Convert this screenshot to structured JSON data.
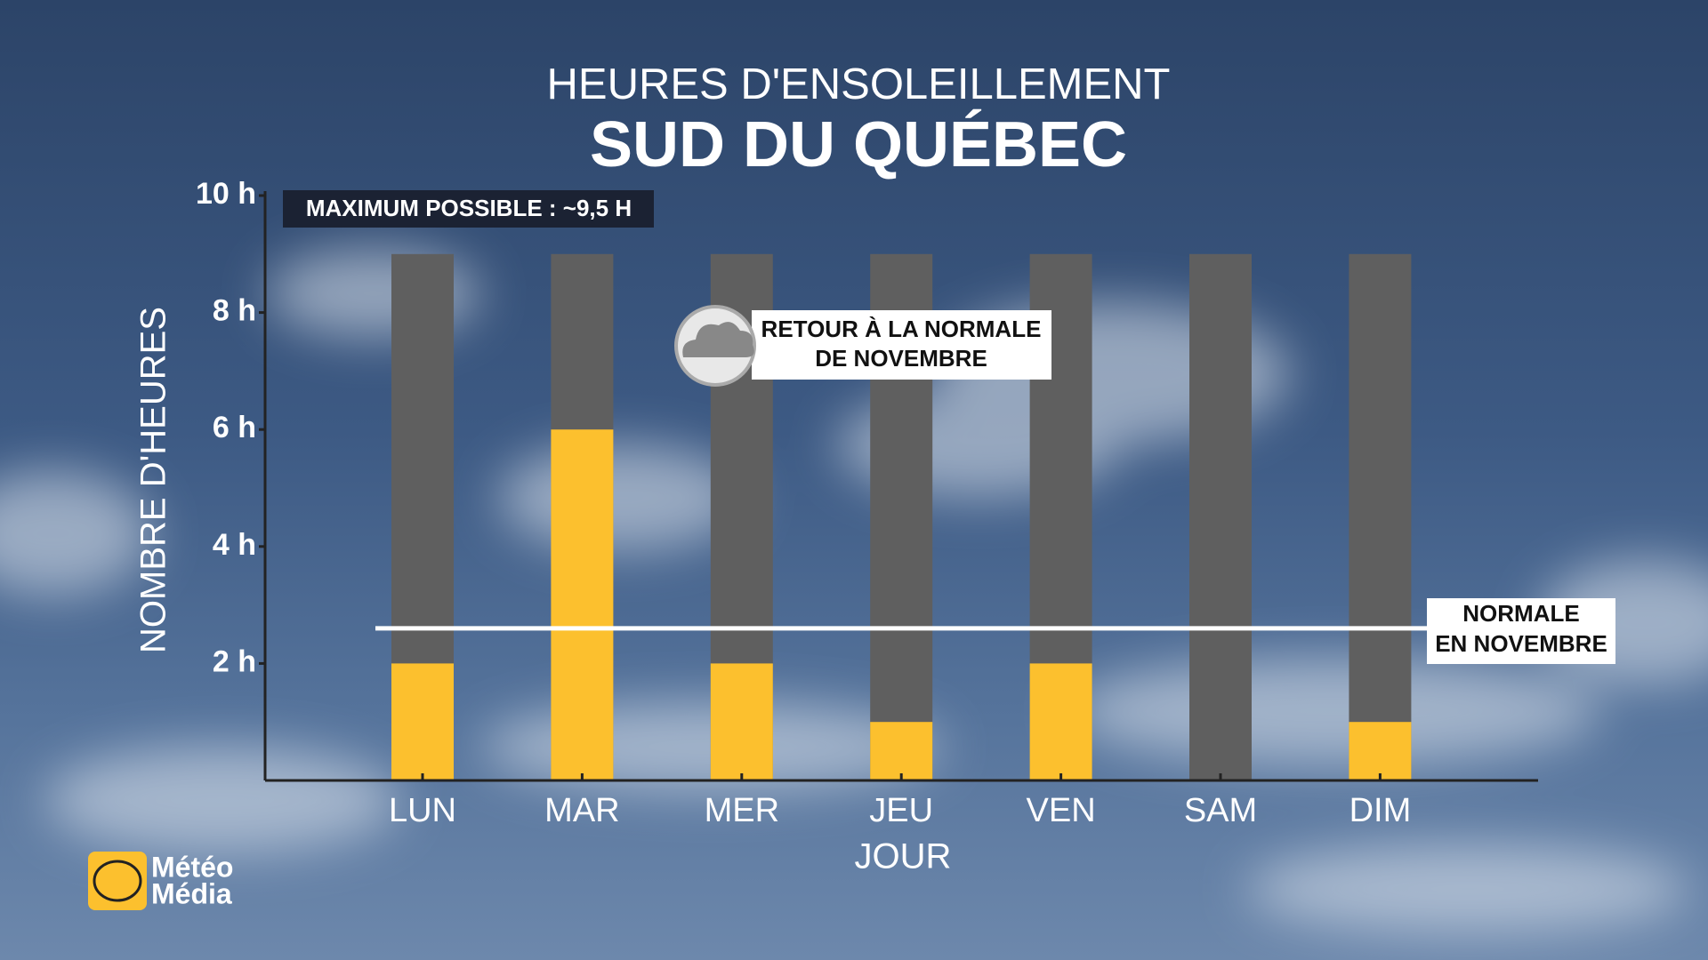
{
  "chart_data": {
    "type": "bar",
    "title": "HEURES D'ENSOLEILLEMENT",
    "subtitle": "SUD DU QUÉBEC",
    "xlabel": "JOUR",
    "ylabel": "NOMBRE D'HEURES",
    "categories": [
      "LUN",
      "MAR",
      "MER",
      "JEU",
      "VEN",
      "SAM",
      "DIM"
    ],
    "values": [
      2,
      6,
      2,
      1,
      2,
      0,
      1
    ],
    "color": "#fcc02e",
    "background_bars": {
      "values": [
        9,
        9,
        9,
        9,
        9,
        9,
        9
      ],
      "color": "#5f5f5f"
    },
    "ylim": [
      0,
      10
    ],
    "yticks": [
      {
        "value": 2,
        "label": "2 h"
      },
      {
        "value": 4,
        "label": "4 h"
      },
      {
        "value": 6,
        "label": "6 h"
      },
      {
        "value": 8,
        "label": "8 h"
      },
      {
        "value": 10,
        "label": "10 h"
      }
    ],
    "reference_line": {
      "value": 2.6,
      "label": [
        "NORMALE",
        "EN NOVEMBRE"
      ]
    },
    "annotations": [
      "MAXIMUM POSSIBLE : ~9,5 H",
      [
        "RETOUR À LA NORMALE",
        "DE NOVEMBRE"
      ]
    ]
  },
  "logo": [
    "Météo",
    "Média"
  ]
}
